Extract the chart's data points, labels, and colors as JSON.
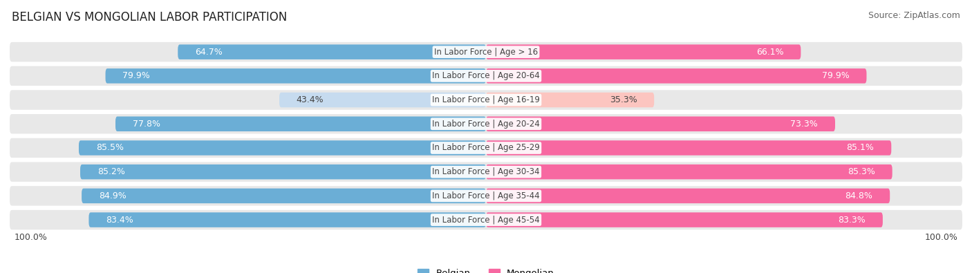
{
  "title": "BELGIAN VS MONGOLIAN LABOR PARTICIPATION",
  "source": "Source: ZipAtlas.com",
  "categories": [
    "In Labor Force | Age > 16",
    "In Labor Force | Age 20-64",
    "In Labor Force | Age 16-19",
    "In Labor Force | Age 20-24",
    "In Labor Force | Age 25-29",
    "In Labor Force | Age 30-34",
    "In Labor Force | Age 35-44",
    "In Labor Force | Age 45-54"
  ],
  "belgian_values": [
    64.7,
    79.9,
    43.4,
    77.8,
    85.5,
    85.2,
    84.9,
    83.4
  ],
  "mongolian_values": [
    66.1,
    79.9,
    35.3,
    73.3,
    85.1,
    85.3,
    84.8,
    83.3
  ],
  "max_value": 100.0,
  "belgian_color_strong": "#6baed6",
  "belgian_color_light": "#c6dbef",
  "mongolian_color_strong": "#f768a1",
  "mongolian_color_light": "#fcc5c0",
  "row_bg_color": "#e8e8e8",
  "background_color": "#ffffff",
  "label_color_dark": "#444444",
  "label_color_white": "#ffffff",
  "title_fontsize": 12,
  "source_fontsize": 9,
  "bar_label_fontsize": 9,
  "category_fontsize": 8.5,
  "legend_fontsize": 9.5,
  "bottom_label": "100.0%"
}
